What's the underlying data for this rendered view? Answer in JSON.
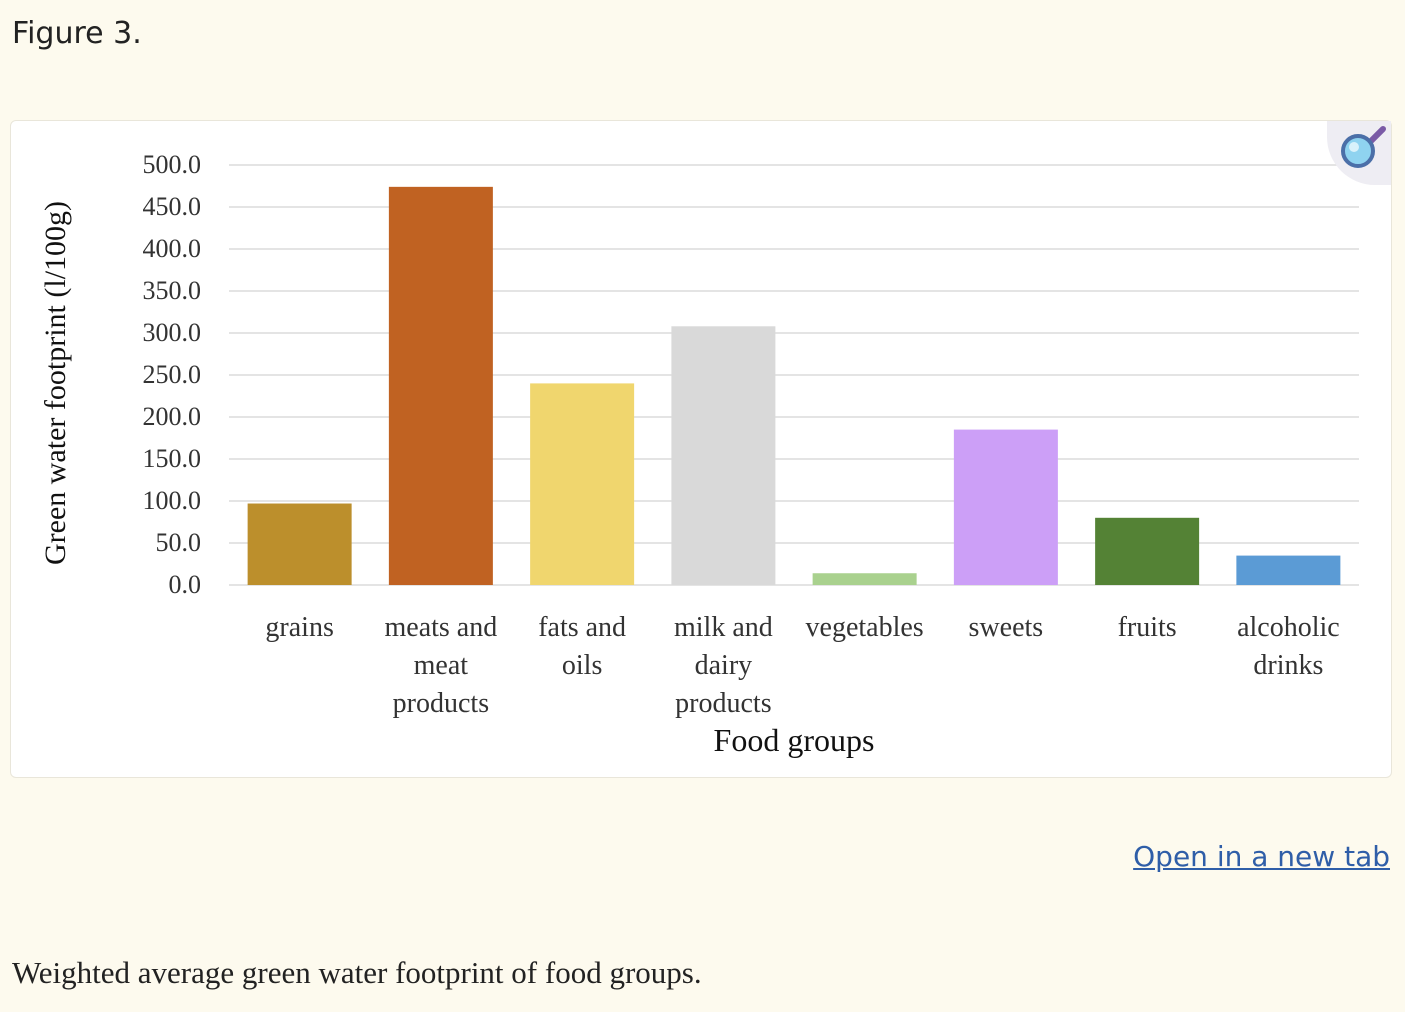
{
  "figure": {
    "label": "Figure 3."
  },
  "link": {
    "open_new_tab": "Open in a new tab"
  },
  "caption": "Weighted average green water footprint of food groups.",
  "icons": {
    "zoom": "magnifier-icon"
  },
  "colors": {
    "grid": "#dcdcdc",
    "grains": "#bc8f2c",
    "meats": "#c06222",
    "fats": "#f0d66e",
    "milk": "#d9d9d9",
    "vegetables": "#a9d18e",
    "sweets": "#cc9ff7",
    "fruits": "#548235",
    "alcohol": "#5b9bd5"
  },
  "chart_data": {
    "type": "bar",
    "title": "",
    "xlabel": "Food groups",
    "ylabel": "Green water footprint (l/100g)",
    "ylim": [
      0,
      500
    ],
    "yticks": [
      "500.0",
      "450.0",
      "400.0",
      "350.0",
      "300.0",
      "250.0",
      "200.0",
      "150.0",
      "100.0",
      "50.0",
      "0.0"
    ],
    "grid": true,
    "categories": [
      [
        "grains"
      ],
      [
        "meats and",
        "meat",
        "products"
      ],
      [
        "fats and",
        "oils"
      ],
      [
        "milk and",
        "dairy",
        "products"
      ],
      [
        "vegetables"
      ],
      [
        "sweets"
      ],
      [
        "fruits"
      ],
      [
        "alcoholic",
        "drinks"
      ]
    ],
    "values": [
      97,
      474,
      240,
      308,
      14,
      185,
      80,
      35
    ],
    "bar_colors": [
      "#bc8f2c",
      "#c06222",
      "#f0d66e",
      "#d9d9d9",
      "#a9d18e",
      "#cc9ff7",
      "#548235",
      "#5b9bd5"
    ]
  }
}
